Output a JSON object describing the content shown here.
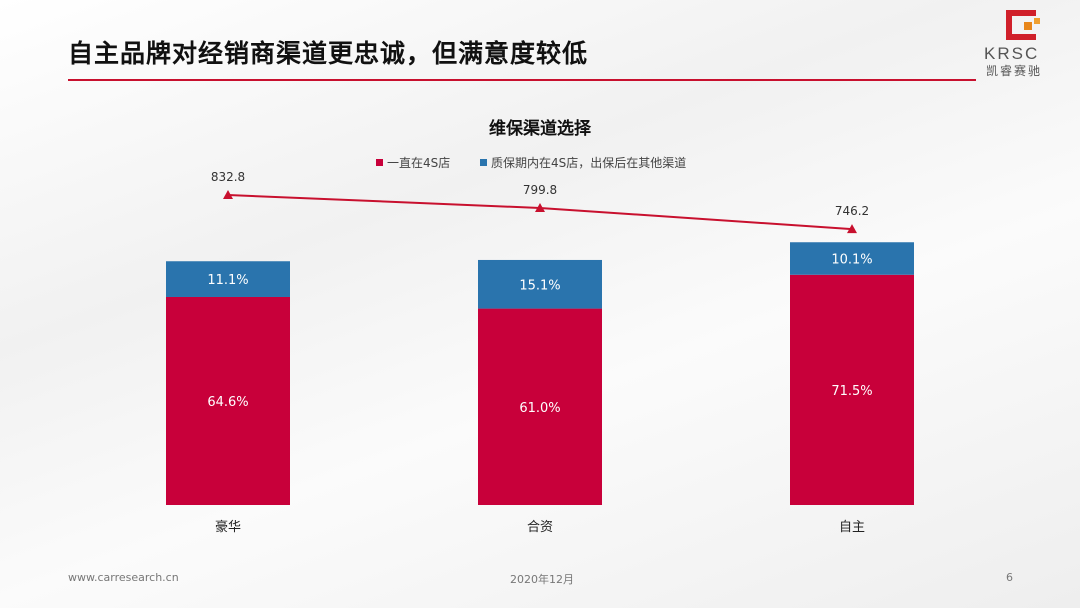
{
  "header": {
    "title": "自主品牌对经销商渠道更忠诚，但满意度较低",
    "logo_text": "KRSC",
    "logo_cn": "凯睿赛驰"
  },
  "footer": {
    "url": "www.carresearch.cn",
    "date": "2020年12月",
    "page": "6"
  },
  "colors": {
    "red": "#c8003a",
    "blue": "#2a74ad",
    "accent": "#c8102e"
  },
  "chart_data": {
    "type": "bar",
    "stacked": true,
    "title": "维保渠道选择",
    "categories": [
      "豪华",
      "合资",
      "自主"
    ],
    "series": [
      {
        "name": "一直在4S店",
        "values": [
          64.6,
          61.0,
          71.5
        ],
        "labels": [
          "64.6%",
          "61.0%",
          "71.5%"
        ]
      },
      {
        "name": "质保期内在4S店，出保后在其他渠道",
        "values": [
          11.1,
          15.1,
          10.1
        ],
        "labels": [
          "11.1%",
          "15.1%",
          "10.1%"
        ]
      }
    ],
    "line": {
      "values": [
        832.8,
        799.8,
        746.2
      ],
      "labels": [
        "832.8",
        "799.8",
        "746.2"
      ]
    },
    "legend": "top",
    "grid": false
  }
}
